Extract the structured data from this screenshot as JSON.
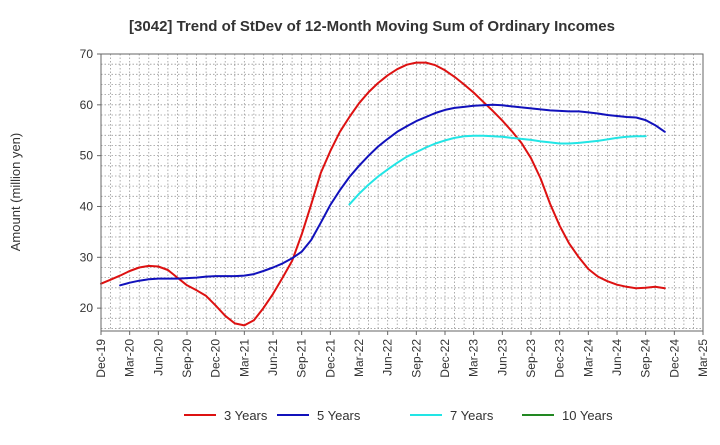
{
  "chart_data": {
    "type": "line",
    "title": "[3042]  Trend of StDev of 12-Month Moving Sum of Ordinary Incomes",
    "xlabel": "",
    "ylabel": "Amount (million yen)",
    "ylim": [
      15.5,
      70
    ],
    "yticks": [
      20,
      30,
      40,
      50,
      60,
      70
    ],
    "xlim": [
      0,
      63
    ],
    "x_tick_labels": [
      "Dec-19",
      "Mar-20",
      "Jun-20",
      "Sep-20",
      "Dec-20",
      "Mar-21",
      "Jun-21",
      "Sep-21",
      "Dec-21",
      "Mar-22",
      "Jun-22",
      "Sep-22",
      "Dec-22",
      "Mar-23",
      "Jun-23",
      "Sep-23",
      "Dec-23",
      "Mar-24",
      "Jun-24",
      "Sep-24",
      "Dec-24",
      "Mar-25"
    ],
    "grid": true,
    "legend_position": "bottom",
    "series": [
      {
        "name": "3 Years",
        "color": "#dd1111",
        "start_index": 0,
        "values": [
          24.8,
          25.6,
          26.4,
          27.3,
          28.0,
          28.3,
          28.2,
          27.5,
          26.0,
          24.5,
          23.5,
          22.4,
          20.5,
          18.5,
          17.0,
          16.6,
          17.6,
          20.0,
          22.8,
          26.0,
          29.3,
          34.5,
          40.4,
          46.6,
          50.9,
          54.7,
          57.6,
          60.3,
          62.5,
          64.3,
          65.8,
          67.0,
          67.9,
          68.3,
          68.3,
          67.8,
          66.8,
          65.5,
          64.0,
          62.4,
          60.6,
          58.8,
          56.9,
          54.8,
          52.5,
          49.5,
          45.5,
          40.5,
          36.2,
          32.7,
          30.0,
          27.7,
          26.2,
          25.3,
          24.6,
          24.2,
          23.9,
          24.0,
          24.2,
          23.9
        ]
      },
      {
        "name": "5 Years",
        "color": "#1111bb",
        "start_index": 2,
        "values": [
          24.5,
          25.0,
          25.4,
          25.7,
          25.8,
          25.8,
          25.8,
          25.9,
          26.0,
          26.2,
          26.3,
          26.3,
          26.3,
          26.4,
          26.7,
          27.3,
          28.0,
          28.8,
          29.8,
          31.1,
          33.4,
          36.8,
          40.3,
          43.2,
          45.8,
          48.0,
          50.0,
          51.8,
          53.3,
          54.7,
          55.8,
          56.8,
          57.6,
          58.4,
          59.0,
          59.4,
          59.6,
          59.8,
          59.9,
          60.0,
          59.9,
          59.7,
          59.5,
          59.3,
          59.1,
          58.9,
          58.8,
          58.7,
          58.7,
          58.5,
          58.3,
          58.0,
          57.8,
          57.6,
          57.5,
          57.0,
          56.0,
          54.7
        ]
      },
      {
        "name": "7 Years",
        "color": "#22e5e5",
        "start_index": 26,
        "values": [
          40.4,
          42.5,
          44.3,
          45.9,
          47.3,
          48.6,
          49.8,
          50.7,
          51.6,
          52.4,
          53.0,
          53.5,
          53.8,
          53.9,
          53.9,
          53.8,
          53.7,
          53.5,
          53.3,
          53.1,
          52.8,
          52.6,
          52.4,
          52.4,
          52.5,
          52.7,
          52.9,
          53.2,
          53.5,
          53.7,
          53.8,
          53.8
        ]
      },
      {
        "name": "10 Years",
        "color": "#228822",
        "start_index": 0,
        "values": []
      }
    ]
  }
}
